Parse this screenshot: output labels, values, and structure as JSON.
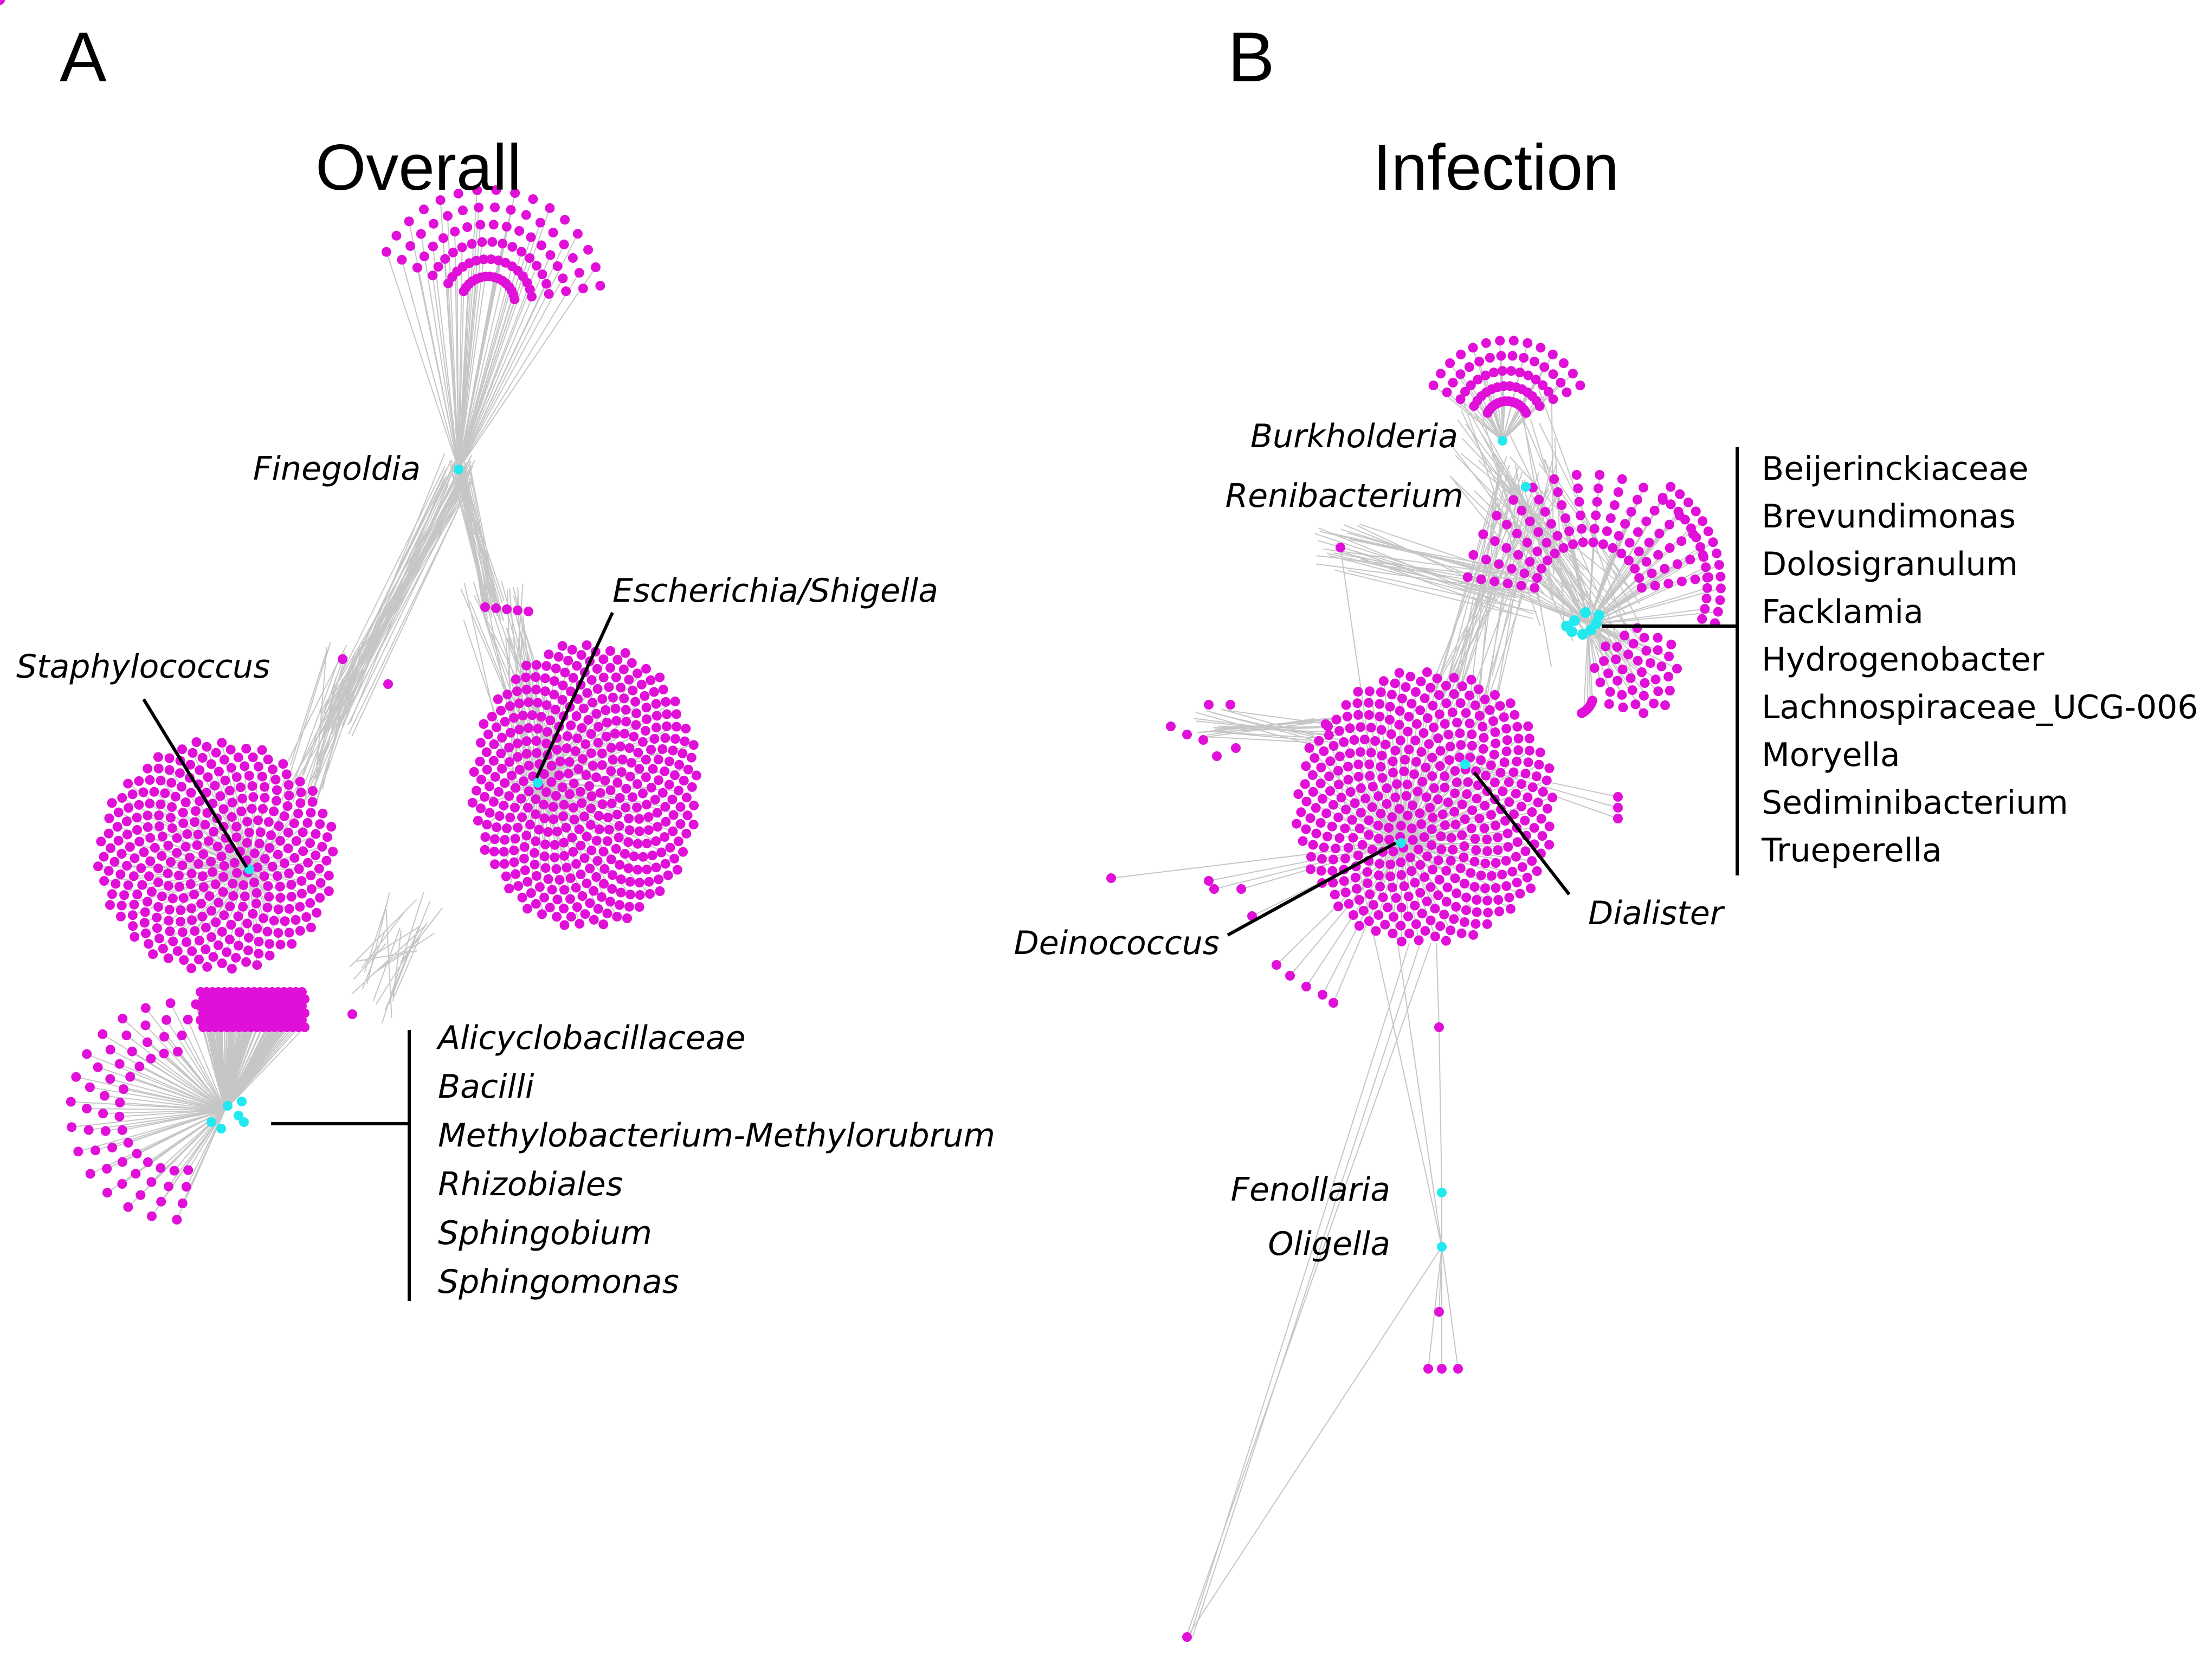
{
  "panels": [
    {
      "letter": "A",
      "title": "Overall",
      "labels": {
        "finegoldia": "Finegoldia",
        "escherichia": "Escherichia/Shigella",
        "staphylococcus": "Staphylococcus"
      },
      "group_list": [
        "Alicyclobacillaceae",
        "Bacilli",
        "Methylobacterium-Methylorubrum",
        "Rhizobiales",
        "Sphingobium",
        "Sphingomonas"
      ]
    },
    {
      "letter": "B",
      "title": "Infection",
      "labels": {
        "burkholderia": "Burkholderia",
        "renibacterium": "Renibacterium",
        "deinococcus": "Deinococcus",
        "dialister": "Dialister",
        "fenollaria": "Fenollaria",
        "oligella": "Oligella"
      },
      "group_list": [
        "Beijerinckiaceae",
        "Brevundimonas",
        "Dolosigranulum",
        "Facklamia",
        "Hydrogenobacter",
        "Lachnospiraceae_UCG-006",
        "Moryella",
        "Sediminibacterium",
        "Trueperella"
      ]
    }
  ],
  "colors": {
    "node": "#e010d8",
    "hub": "#22e8f0",
    "edge": "#c6c6c6",
    "text": "#000000"
  }
}
